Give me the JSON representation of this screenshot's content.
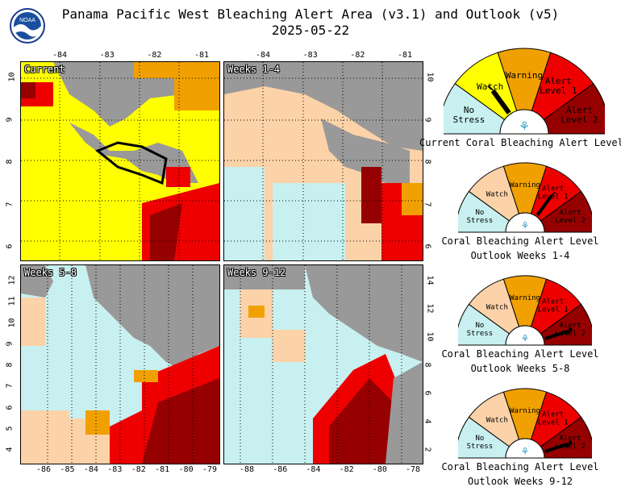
{
  "title_line1": "Panama Pacific West Bleaching Alert Area (v3.1) and Outlook (v5)",
  "date": "2025-05-22",
  "logo_text": "NOAA",
  "colors": {
    "no_stress": "#c8f0f0",
    "watch": "#ffff00",
    "outlook_watch": "#fcd2a8",
    "warning": "#f0a000",
    "alert1": "#ee0000",
    "alert2": "#960000",
    "land": "#999999"
  },
  "panels": [
    {
      "label": "Current",
      "top_ticks": [
        "-84",
        "-83",
        "-82",
        "-81"
      ],
      "left_ticks": [
        "10",
        "9",
        "8",
        "7",
        "6"
      ],
      "right_ticks": [],
      "bottom_ticks": []
    },
    {
      "label": "Weeks 1-4",
      "top_ticks": [
        "-84",
        "-83",
        "-82",
        "-81"
      ],
      "left_ticks": [],
      "right_ticks": [
        "10",
        "9",
        "8",
        "7",
        "6"
      ],
      "bottom_ticks": []
    },
    {
      "label": "Weeks 5-8",
      "top_ticks": [],
      "left_ticks": [
        "12",
        "11",
        "10",
        "9",
        "8",
        "7",
        "6",
        "5",
        "4"
      ],
      "right_ticks": [],
      "bottom_ticks": [
        "-86",
        "-85",
        "-84",
        "-83",
        "-82",
        "-81",
        "-80",
        "-79"
      ]
    },
    {
      "label": "Weeks 9-12",
      "top_ticks": [],
      "left_ticks": [],
      "right_ticks": [
        "14",
        "12",
        "10",
        "8",
        "6",
        "4",
        "2"
      ],
      "bottom_ticks": [
        "-88",
        "-86",
        "-84",
        "-82",
        "-80",
        "-78"
      ]
    }
  ],
  "gauges": [
    {
      "labels": {
        "no_stress": "No Stress",
        "watch": "Watch",
        "warning": "Warning",
        "alert1": "Alert Level 1",
        "alert2": "Alert Level 2"
      },
      "caption1": "Current Coral Bleaching Alert Level",
      "caption2": "",
      "level": "watch"
    },
    {
      "labels": {
        "no_stress": "No Stress",
        "watch": "Watch",
        "warning": "Warning",
        "alert1": "Alert Level 1",
        "alert2": "Alert Level 2"
      },
      "caption1": "Coral Bleaching Alert Level",
      "caption2": "Outlook Weeks 1-4",
      "level": "alert1"
    },
    {
      "labels": {
        "no_stress": "No Stress",
        "watch": "Watch",
        "warning": "Warning",
        "alert1": "Alert Level 1",
        "alert2": "Alert Level 2"
      },
      "caption1": "Coral Bleaching Alert Level",
      "caption2": "Outlook Weeks 5-8",
      "level": "alert2"
    },
    {
      "labels": {
        "no_stress": "No Stress",
        "watch": "Watch",
        "warning": "Warning",
        "alert1": "Alert Level 1",
        "alert2": "Alert Level 2"
      },
      "caption1": "Coral Bleaching Alert Level",
      "caption2": "Outlook Weeks 9-12",
      "level": "alert2"
    }
  ]
}
